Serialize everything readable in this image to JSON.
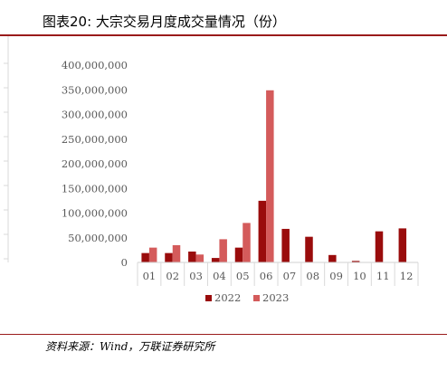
{
  "title": "图表20:  大宗交易月度成交量情况（份）",
  "footer": "资料来源：Wind，万联证券研究所",
  "colors": {
    "series_2022": "#9a0c0c",
    "series_2023": "#d45b5b",
    "rule": "#9a1b1b"
  },
  "chart_data": {
    "type": "bar",
    "title": "",
    "xlabel": "",
    "ylabel": "",
    "categories": [
      "01",
      "02",
      "03",
      "04",
      "05",
      "06",
      "07",
      "08",
      "09",
      "10",
      "11",
      "12"
    ],
    "ylim": [
      0,
      400000000
    ],
    "y_ticks": [
      0,
      50000000,
      100000000,
      150000000,
      200000000,
      250000000,
      300000000,
      350000000,
      400000000
    ],
    "y_tick_labels": [
      "0",
      "50,000,000",
      "100,000,000",
      "150,000,000",
      "200,000,000",
      "250,000,000",
      "300,000,000",
      "350,000,000",
      "400,000,000"
    ],
    "grid": false,
    "legend_position": "bottom",
    "series": [
      {
        "name": "2022",
        "values": [
          19000000,
          19000000,
          22000000,
          9000000,
          30000000,
          125000000,
          68000000,
          52000000,
          15000000,
          3000000,
          63000000,
          69000000
        ]
      },
      {
        "name": "2023",
        "values": [
          30000000,
          35000000,
          16000000,
          47000000,
          80000000,
          349000000,
          null,
          null,
          null,
          null,
          null,
          null
        ]
      }
    ]
  }
}
